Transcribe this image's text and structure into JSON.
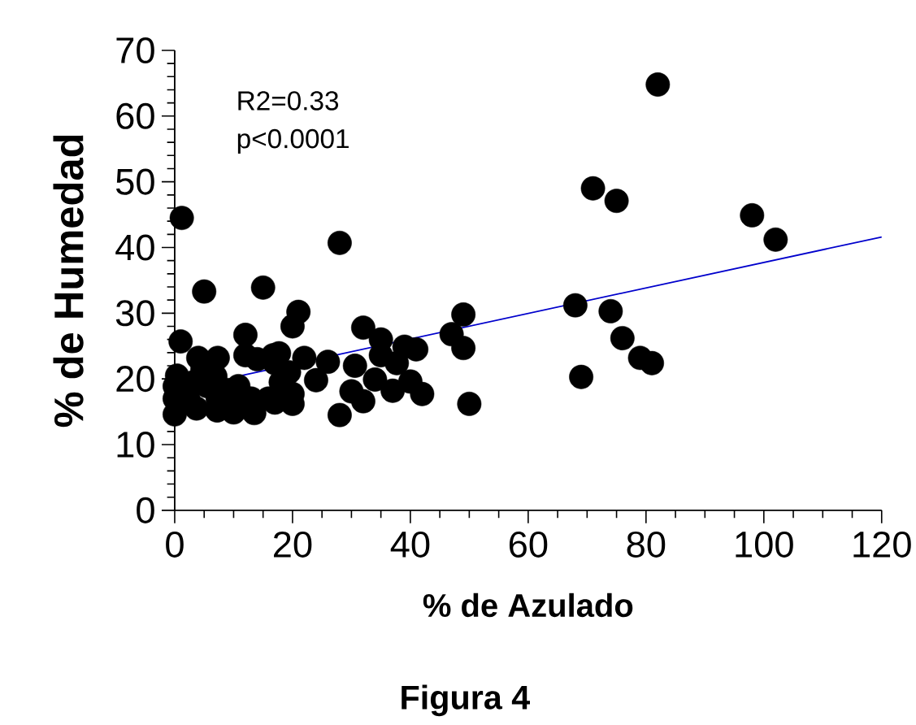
{
  "chart_data": {
    "type": "scatter",
    "xlabel": "% de Azulado",
    "ylabel": "% de Humedad",
    "xlim": [
      0,
      120
    ],
    "ylim": [
      0,
      70
    ],
    "xticks": [
      0,
      20,
      40,
      60,
      80,
      100,
      120
    ],
    "yticks": [
      0,
      10,
      20,
      30,
      40,
      50,
      60,
      70
    ],
    "grid": false,
    "annotations": [
      "R2=0.33",
      "p<0.0001",
      "Figura 4"
    ],
    "series": [
      {
        "color": "#000000",
        "marker": "circle",
        "x": [
          1.2,
          28,
          5,
          15,
          21,
          20,
          12,
          1,
          32,
          35,
          41,
          39,
          47,
          49,
          49,
          50,
          42,
          37,
          40,
          34,
          30.6,
          35,
          37.7,
          32,
          30,
          28,
          26,
          24,
          22,
          17.7,
          16.7,
          14,
          12,
          17,
          20,
          20,
          17,
          13,
          13.5,
          10,
          7.2,
          3.7,
          0,
          0,
          0,
          0.4,
          4,
          7.3,
          4.7,
          6.9,
          5.5,
          3.2,
          2.3,
          9,
          7.3,
          10.8,
          11.7,
          15.9,
          18,
          19.4,
          68,
          69,
          71,
          75,
          74,
          76,
          79,
          81,
          82,
          98,
          102
        ],
        "values": [
          44.5,
          40.7,
          33.3,
          33.9,
          30.2,
          28,
          26.7,
          25.7,
          27.8,
          26,
          24.5,
          24.9,
          26.8,
          29.8,
          24.7,
          16.2,
          17.7,
          18.2,
          19.6,
          19.9,
          22,
          23.6,
          22.4,
          16.6,
          18.1,
          14.5,
          22.6,
          19.8,
          23.2,
          23.9,
          23.6,
          23,
          23.6,
          22.4,
          16.2,
          17.7,
          16.4,
          17,
          14.8,
          14.9,
          15.2,
          15.5,
          14.6,
          17,
          18.9,
          20.5,
          23.2,
          23.2,
          21.4,
          20.4,
          18.9,
          19.5,
          17,
          18.3,
          17,
          18.9,
          17.3,
          17,
          19.5,
          21,
          31.2,
          20.3,
          49,
          47.1,
          30.3,
          26.2,
          23.2,
          22.4,
          64.8,
          44.9,
          41.2
        ]
      },
      {
        "type": "line",
        "color": "#0000cc",
        "marker": "none",
        "line_style": "solid",
        "x": [
          9.7,
          120
        ],
        "values": [
          20.2,
          41.6
        ]
      }
    ]
  }
}
